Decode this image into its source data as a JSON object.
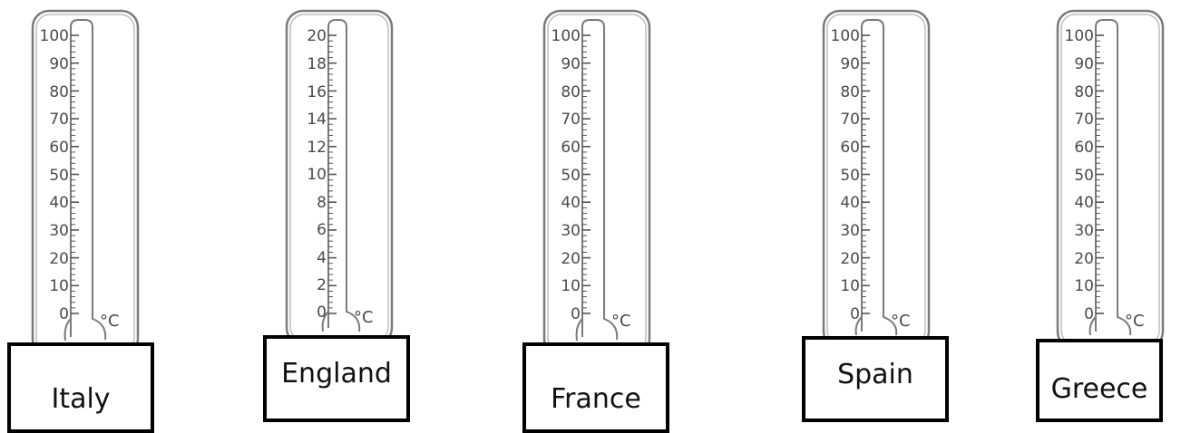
{
  "thermometers": [
    {
      "country": "Italy",
      "scale_max": 100,
      "scale_step": 10,
      "unit": "°C",
      "scale_labels": [
        "100",
        "90",
        "80",
        "70",
        "60",
        "50",
        "40",
        "30",
        "20",
        "10",
        "0"
      ]
    },
    {
      "country": "England",
      "scale_max": 20,
      "scale_step": 2,
      "unit": "°C",
      "scale_labels": [
        "20",
        "18",
        "16",
        "14",
        "12",
        "10",
        "8",
        "6",
        "4",
        "2",
        "0"
      ]
    },
    {
      "country": "France",
      "scale_max": 100,
      "scale_step": 10,
      "unit": "°C",
      "scale_labels": [
        "100",
        "90",
        "80",
        "70",
        "60",
        "50",
        "40",
        "30",
        "20",
        "10",
        "0"
      ]
    },
    {
      "country": "Spain",
      "scale_max": 100,
      "scale_step": 10,
      "unit": "°C",
      "scale_labels": [
        "100",
        "90",
        "80",
        "70",
        "60",
        "50",
        "40",
        "30",
        "20",
        "10",
        "0"
      ]
    },
    {
      "country": "Greece",
      "scale_max": 100,
      "scale_step": 10,
      "unit": "°C",
      "scale_labels": [
        "100",
        "90",
        "80",
        "70",
        "60",
        "50",
        "40",
        "30",
        "20",
        "10",
        "0"
      ]
    }
  ],
  "colors": {
    "outline": "#7a7a7a",
    "ticks": "#555555",
    "label_border": "#000000"
  }
}
